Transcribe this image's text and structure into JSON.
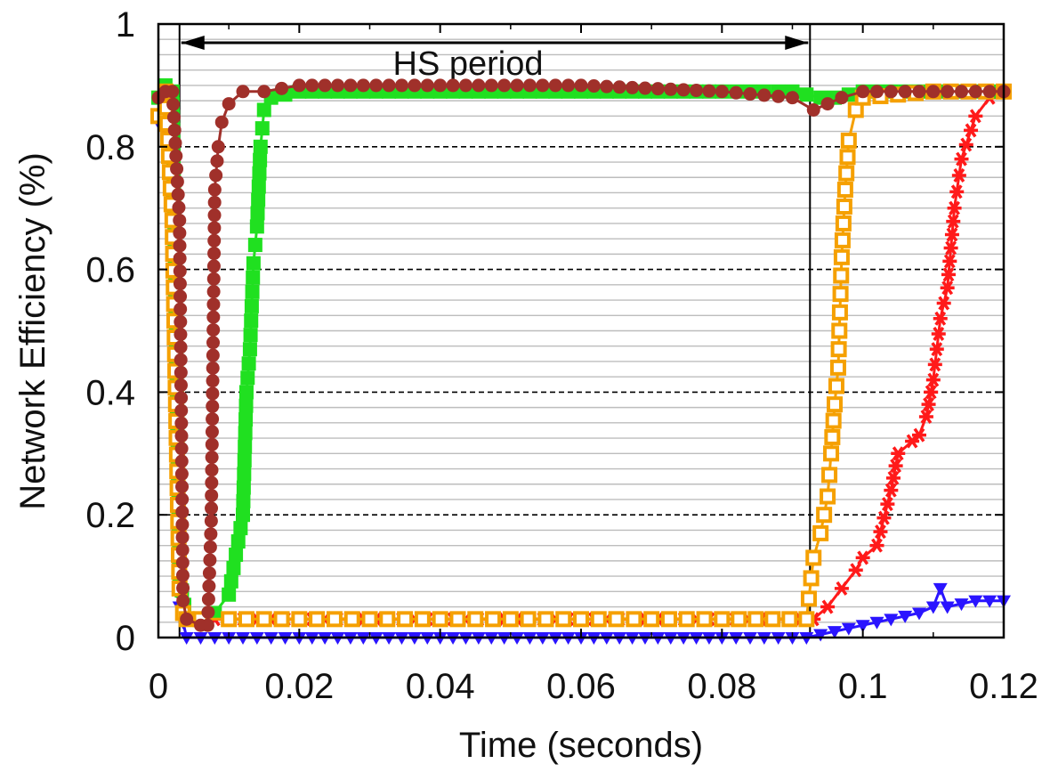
{
  "chart_data": {
    "type": "line",
    "title": "",
    "xlabel": "Time (seconds)",
    "ylabel": "Network Efficiency (%)",
    "xlim": [
      0,
      0.12
    ],
    "ylim": [
      0,
      1
    ],
    "xticks": [
      "0",
      "0.02",
      "0.04",
      "0.06",
      "0.08",
      "0.1",
      "0.12"
    ],
    "yticks": [
      "0",
      "0.2",
      "0.4",
      "0.6",
      "0.8",
      "1"
    ],
    "grid": "horizontal",
    "annotations": [
      {
        "text": "HS period",
        "x_start": 0.003,
        "x_end": 0.0925
      }
    ],
    "series": [
      {
        "color": "#2a14ff",
        "marker": "triangle-down",
        "x": [
          0,
          0.001,
          0.002,
          0.003,
          0.004,
          0.006,
          0.01,
          0.02,
          0.04,
          0.06,
          0.08,
          0.092,
          0.094,
          0.096,
          0.098,
          0.1,
          0.102,
          0.104,
          0.106,
          0.108,
          0.11,
          0.111,
          0.112,
          0.114,
          0.116,
          0.118,
          0.12
        ],
        "y": [
          0.84,
          0.87,
          0.82,
          0.05,
          0.0,
          0.0,
          0.0,
          0.0,
          0.0,
          0.0,
          0.0,
          0.0,
          0.005,
          0.01,
          0.015,
          0.02,
          0.025,
          0.03,
          0.035,
          0.04,
          0.05,
          0.08,
          0.05,
          0.055,
          0.06,
          0.06,
          0.06
        ]
      },
      {
        "color": "#ff1a1a",
        "marker": "star",
        "x": [
          0,
          0.001,
          0.002,
          0.003,
          0.0035,
          0.004,
          0.006,
          0.01,
          0.02,
          0.04,
          0.06,
          0.08,
          0.093,
          0.095,
          0.097,
          0.099,
          0.1,
          0.102,
          0.104,
          0.105,
          0.107,
          0.108,
          0.109,
          0.11,
          0.111,
          0.112,
          0.113,
          0.114,
          0.116,
          0.118,
          0.12
        ],
        "y": [
          0.88,
          0.89,
          0.76,
          0.12,
          0.05,
          0.03,
          0.03,
          0.03,
          0.03,
          0.03,
          0.03,
          0.03,
          0.03,
          0.05,
          0.08,
          0.11,
          0.13,
          0.15,
          0.24,
          0.3,
          0.32,
          0.33,
          0.36,
          0.42,
          0.52,
          0.57,
          0.7,
          0.78,
          0.85,
          0.88,
          0.89
        ]
      },
      {
        "color": "#20e020",
        "marker": "square",
        "x": [
          0,
          0.001,
          0.002,
          0.003,
          0.004,
          0.006,
          0.008,
          0.01,
          0.012,
          0.0125,
          0.013,
          0.0135,
          0.014,
          0.0145,
          0.015,
          0.016,
          0.02,
          0.04,
          0.06,
          0.08,
          0.09,
          0.094,
          0.096,
          0.1,
          0.11,
          0.12
        ],
        "y": [
          0.88,
          0.9,
          0.89,
          0.1,
          0.03,
          0.03,
          0.04,
          0.07,
          0.2,
          0.4,
          0.47,
          0.61,
          0.67,
          0.8,
          0.86,
          0.88,
          0.89,
          0.89,
          0.89,
          0.89,
          0.89,
          0.88,
          0.88,
          0.89,
          0.89,
          0.89
        ]
      },
      {
        "color": "#f5a000",
        "marker": "square-open",
        "x": [
          0,
          0.001,
          0.002,
          0.003,
          0.0035,
          0.004,
          0.006,
          0.01,
          0.02,
          0.04,
          0.06,
          0.08,
          0.092,
          0.093,
          0.094,
          0.095,
          0.0955,
          0.096,
          0.0965,
          0.097,
          0.0975,
          0.098,
          0.099,
          0.1,
          0.11,
          0.12
        ],
        "y": [
          0.85,
          0.89,
          0.68,
          0.08,
          0.04,
          0.03,
          0.03,
          0.03,
          0.03,
          0.03,
          0.03,
          0.03,
          0.03,
          0.13,
          0.17,
          0.23,
          0.3,
          0.38,
          0.44,
          0.62,
          0.73,
          0.81,
          0.86,
          0.88,
          0.89,
          0.89
        ]
      },
      {
        "color": "#a0302a",
        "marker": "circle",
        "x": [
          0,
          0.001,
          0.002,
          0.003,
          0.0035,
          0.004,
          0.006,
          0.007,
          0.0075,
          0.008,
          0.0085,
          0.009,
          0.01,
          0.012,
          0.015,
          0.02,
          0.04,
          0.06,
          0.08,
          0.09,
          0.093,
          0.095,
          0.097,
          0.1,
          0.11,
          0.12
        ],
        "y": [
          0.88,
          0.89,
          0.89,
          0.68,
          0.06,
          0.03,
          0.02,
          0.02,
          0.19,
          0.73,
          0.8,
          0.84,
          0.87,
          0.89,
          0.89,
          0.9,
          0.9,
          0.9,
          0.89,
          0.88,
          0.86,
          0.87,
          0.88,
          0.89,
          0.89,
          0.89
        ]
      }
    ]
  }
}
